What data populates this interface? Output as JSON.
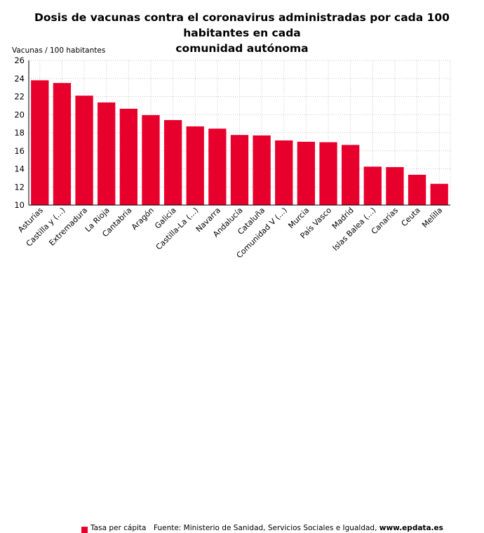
{
  "title_line1": "Dosis de vacunas contra el coronavirus administradas por cada 100 habitantes en cada",
  "title_line2": "comunidad autónoma",
  "legend_label": "Tasa per cápita",
  "source_prefix": "Fuente: Ministerio de Sanidad, Servicios Sociales e Igualdad, ",
  "source_site": "www.epdata.es",
  "colors": {
    "bar": "#e8002d",
    "grid": "#c8c8c8",
    "axis": "#000000"
  },
  "chart_data": {
    "type": "bar",
    "title": "Dosis de vacunas contra el coronavirus administradas por cada 100 habitantes en cada comunidad autónoma",
    "ylabel": "Vacunas / 100 habitantes",
    "xlabel": "",
    "ylim": [
      10,
      26
    ],
    "yticks": [
      10,
      12,
      14,
      16,
      18,
      20,
      22,
      24,
      26
    ],
    "grid": true,
    "legend": "bottom",
    "categories": [
      "Asturias",
      "Castilla y (...)",
      "Extremadura",
      "La Rioja",
      "Cantabria",
      "Aragón",
      "Galicia",
      "Castilla-La (...)",
      "Navarra",
      "Andalucía",
      "Cataluña",
      "Comunidad V (...)",
      "Murcia",
      "País Vasco",
      "Madrid",
      "Islas Balea (...)",
      "Canarias",
      "Ceuta",
      "Melilla"
    ],
    "series": [
      {
        "name": "Tasa per cápita",
        "values": [
          23.8,
          23.5,
          22.1,
          21.35,
          20.65,
          19.95,
          19.4,
          18.7,
          18.45,
          17.75,
          17.7,
          17.15,
          17.0,
          16.95,
          16.65,
          14.25,
          14.2,
          13.35,
          12.35
        ]
      }
    ]
  }
}
